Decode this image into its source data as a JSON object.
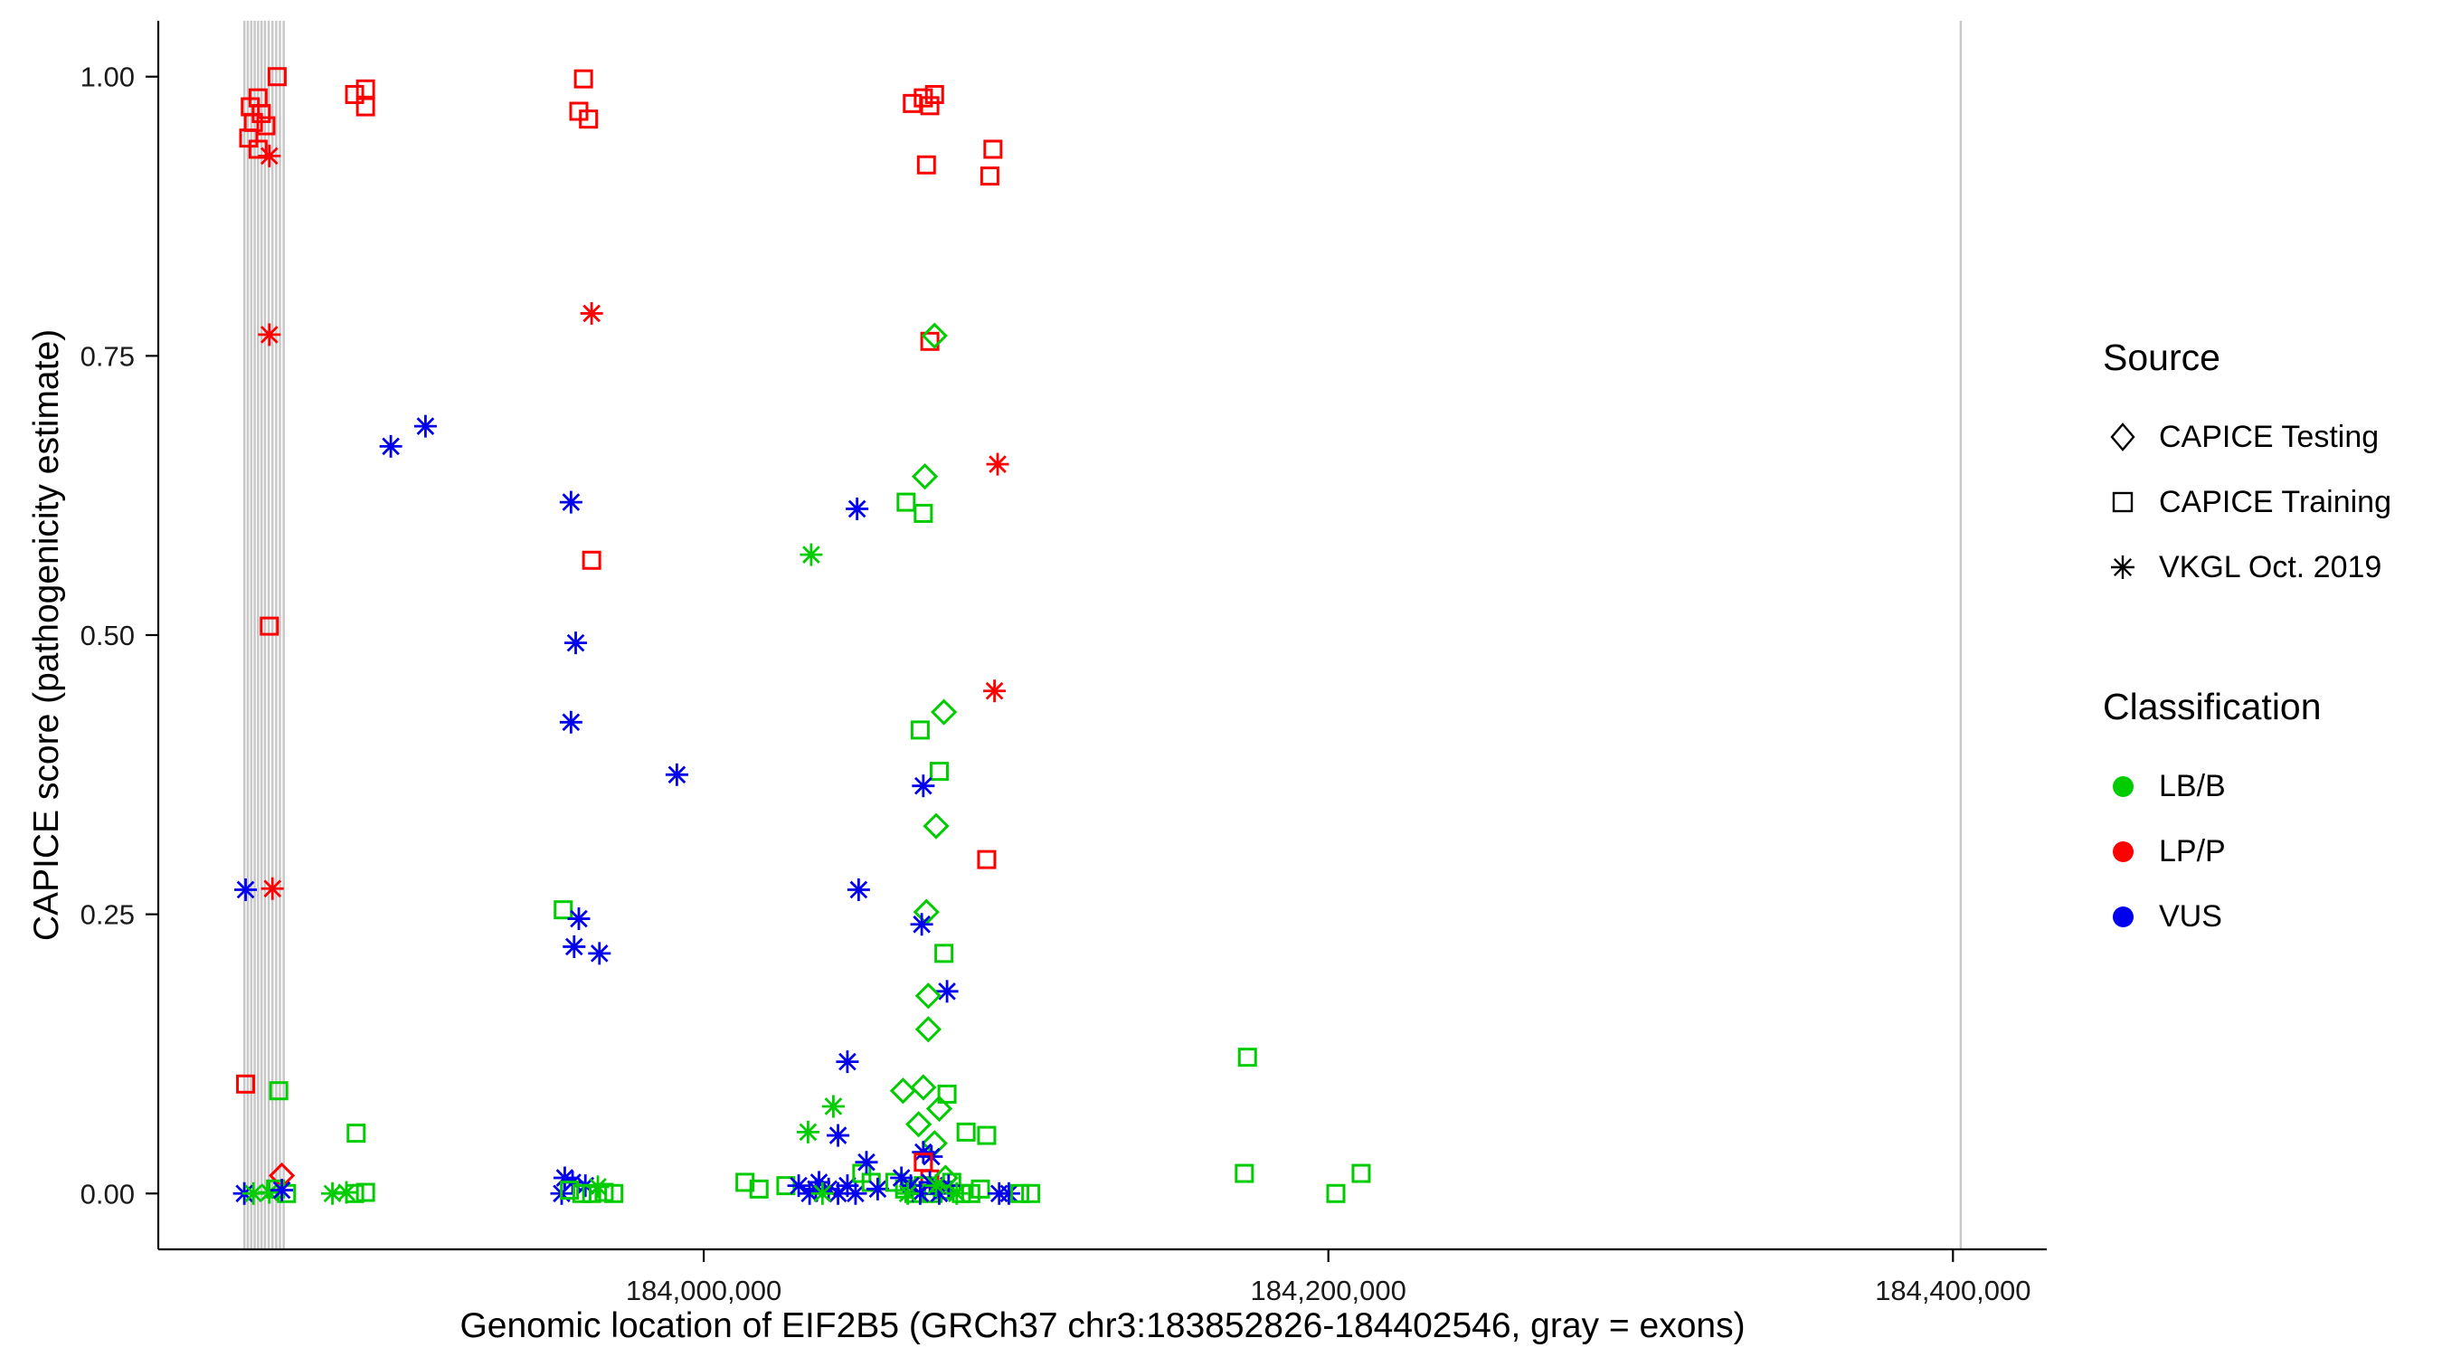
{
  "figure": {
    "xlabel": "Genomic location of EIF2B5 (GRCh37 chr3:183852826-184402546, gray = exons)",
    "ylabel": "CAPICE score (pathogenicity estimate)"
  },
  "legend": {
    "source": {
      "title": "Source",
      "items": [
        {
          "label": "CAPICE Testing",
          "shape": "diamond"
        },
        {
          "label": "CAPICE Training",
          "shape": "square"
        },
        {
          "label": "VKGL Oct. 2019",
          "shape": "asterisk"
        }
      ]
    },
    "classification": {
      "title": "Classification",
      "items": [
        {
          "label": "LB/B",
          "color": "#00cc00"
        },
        {
          "label": "LP/P",
          "color": "#ff0000"
        },
        {
          "label": "VUS",
          "color": "#0000ee"
        }
      ]
    }
  },
  "chart_data": {
    "type": "scatter",
    "title": "",
    "xlabel": "Genomic location of EIF2B5 (GRCh37 chr3:183852826-184402546, gray = exons)",
    "ylabel": "CAPICE score (pathogenicity estimate)",
    "xlim": [
      183825340,
      184430032
    ],
    "ylim": [
      -0.05,
      1.05
    ],
    "grid": false,
    "legend_position": "right",
    "x_ticks": [
      {
        "v": 184000000,
        "label": "184,000,000"
      },
      {
        "v": 184200000,
        "label": "184,200,000"
      },
      {
        "v": 184400000,
        "label": "184,400,000"
      }
    ],
    "y_ticks": [
      {
        "v": 0.0,
        "label": "0.00"
      },
      {
        "v": 0.25,
        "label": "0.25"
      },
      {
        "v": 0.5,
        "label": "0.50"
      },
      {
        "v": 0.75,
        "label": "0.75"
      },
      {
        "v": 1.0,
        "label": "1.00"
      }
    ],
    "exon_color": "#c8c8c8",
    "exons_x": [
      183852900,
      183854000,
      183855100,
      183856200,
      183857300,
      183858400,
      183859500,
      183860700,
      183861900,
      183863100,
      183864300,
      183865500,
      184402500
    ],
    "source_codes": {
      "d": "CAPICE Testing",
      "s": "CAPICE Training",
      "a": "VKGL Oct. 2019"
    },
    "class_codes": {
      "g": "LB/B",
      "r": "LP/P",
      "b": "VUS"
    },
    "class_colors": {
      "g": "#00cc00",
      "r": "#ff0000",
      "b": "#0000ee"
    },
    "point_format": [
      "genomic_position",
      "capice_score",
      "source_code",
      "classification_code"
    ],
    "points": [
      [
        183863400,
        1.0,
        "s",
        "r"
      ],
      [
        183857300,
        0.981,
        "s",
        "r"
      ],
      [
        183854800,
        0.973,
        "s",
        "r"
      ],
      [
        183858300,
        0.967,
        "s",
        "r"
      ],
      [
        183855800,
        0.959,
        "s",
        "r"
      ],
      [
        183859800,
        0.956,
        "s",
        "r"
      ],
      [
        183854300,
        0.945,
        "s",
        "r"
      ],
      [
        183857300,
        0.935,
        "s",
        "r"
      ],
      [
        183860900,
        0.929,
        "a",
        "r"
      ],
      [
        183860900,
        0.769,
        "a",
        "r"
      ],
      [
        183860900,
        0.508,
        "s",
        "r"
      ],
      [
        183853300,
        0.272,
        "a",
        "b"
      ],
      [
        183861900,
        0.273,
        "a",
        "r"
      ],
      [
        183853300,
        0.098,
        "s",
        "r"
      ],
      [
        183863900,
        0.092,
        "s",
        "g"
      ],
      [
        183864900,
        0.016,
        "d",
        "r"
      ],
      [
        183852900,
        0.0,
        "a",
        "b"
      ],
      [
        183855800,
        0.0,
        "a",
        "g"
      ],
      [
        183860900,
        0.001,
        "a",
        "g"
      ],
      [
        183862900,
        0.004,
        "s",
        "g"
      ],
      [
        183866400,
        0.0,
        "s",
        "g"
      ],
      [
        183864900,
        0.003,
        "a",
        "b"
      ],
      [
        183881100,
        0.0,
        "a",
        "g"
      ],
      [
        183885600,
        0.001,
        "a",
        "g"
      ],
      [
        183888200,
        0.0,
        "s",
        "g"
      ],
      [
        183891700,
        0.001,
        "s",
        "g"
      ],
      [
        183888700,
        0.054,
        "s",
        "g"
      ],
      [
        183888200,
        0.984,
        "s",
        "r"
      ],
      [
        183891700,
        0.989,
        "s",
        "r"
      ],
      [
        183891700,
        0.973,
        "s",
        "r"
      ],
      [
        183899800,
        0.669,
        "a",
        "b"
      ],
      [
        183910900,
        0.687,
        "a",
        "b"
      ],
      [
        183961500,
        0.998,
        "s",
        "r"
      ],
      [
        183960000,
        0.969,
        "s",
        "r"
      ],
      [
        183963100,
        0.962,
        "s",
        "r"
      ],
      [
        183964100,
        0.788,
        "a",
        "r"
      ],
      [
        183964100,
        0.567,
        "s",
        "r"
      ],
      [
        183957500,
        0.619,
        "a",
        "b"
      ],
      [
        183959000,
        0.493,
        "a",
        "b"
      ],
      [
        183957500,
        0.422,
        "a",
        "b"
      ],
      [
        183955000,
        0.254,
        "s",
        "g"
      ],
      [
        183960000,
        0.246,
        "a",
        "b"
      ],
      [
        183958500,
        0.221,
        "a",
        "b"
      ],
      [
        183966600,
        0.215,
        "a",
        "b"
      ],
      [
        183955500,
        0.014,
        "a",
        "b"
      ],
      [
        183958000,
        0.01,
        "a",
        "b"
      ],
      [
        183962100,
        0.007,
        "a",
        "b"
      ],
      [
        183954500,
        0.0,
        "a",
        "b"
      ],
      [
        183957000,
        0.003,
        "s",
        "g"
      ],
      [
        183961000,
        0.0,
        "s",
        "g"
      ],
      [
        183964100,
        0.0,
        "s",
        "g"
      ],
      [
        183968100,
        0.001,
        "s",
        "g"
      ],
      [
        183971200,
        0.0,
        "s",
        "g"
      ],
      [
        183966100,
        0.006,
        "a",
        "g"
      ],
      [
        183991400,
        0.375,
        "a",
        "b"
      ],
      [
        184013200,
        0.01,
        "s",
        "g"
      ],
      [
        184017700,
        0.004,
        "s",
        "g"
      ],
      [
        184026300,
        0.007,
        "s",
        "g"
      ],
      [
        184034400,
        0.572,
        "a",
        "g"
      ],
      [
        184049100,
        0.613,
        "a",
        "b"
      ],
      [
        184033400,
        0.055,
        "a",
        "g"
      ],
      [
        184041500,
        0.078,
        "a",
        "g"
      ],
      [
        184046000,
        0.118,
        "a",
        "b"
      ],
      [
        184043000,
        0.052,
        "a",
        "b"
      ],
      [
        184049600,
        0.272,
        "a",
        "b"
      ],
      [
        184036900,
        0.01,
        "a",
        "b"
      ],
      [
        184040000,
        0.004,
        "a",
        "b"
      ],
      [
        184043000,
        0.0,
        "a",
        "b"
      ],
      [
        184046000,
        0.007,
        "a",
        "b"
      ],
      [
        184048600,
        0.0,
        "a",
        "b"
      ],
      [
        184050600,
        0.018,
        "s",
        "g"
      ],
      [
        184053600,
        0.01,
        "s",
        "g"
      ],
      [
        184052100,
        0.028,
        "a",
        "b"
      ],
      [
        184055700,
        0.004,
        "a",
        "b"
      ],
      [
        184033900,
        0.0,
        "a",
        "b"
      ],
      [
        184035900,
        0.004,
        "a",
        "b"
      ],
      [
        184038000,
        0.0,
        "a",
        "g"
      ],
      [
        184030400,
        0.007,
        "a",
        "b"
      ],
      [
        184066800,
        0.976,
        "s",
        "r"
      ],
      [
        184070300,
        0.981,
        "s",
        "r"
      ],
      [
        184073900,
        0.984,
        "s",
        "r"
      ],
      [
        184072400,
        0.974,
        "s",
        "r"
      ],
      [
        184071300,
        0.921,
        "s",
        "r"
      ],
      [
        184092600,
        0.935,
        "s",
        "r"
      ],
      [
        184091600,
        0.911,
        "s",
        "r"
      ],
      [
        184072400,
        0.763,
        "s",
        "r"
      ],
      [
        184073900,
        0.768,
        "d",
        "g"
      ],
      [
        184070800,
        0.642,
        "d",
        "g"
      ],
      [
        184064800,
        0.619,
        "s",
        "g"
      ],
      [
        184070300,
        0.609,
        "s",
        "g"
      ],
      [
        184094100,
        0.653,
        "a",
        "r"
      ],
      [
        184093100,
        0.45,
        "a",
        "r"
      ],
      [
        184069300,
        0.415,
        "s",
        "g"
      ],
      [
        184076900,
        0.431,
        "d",
        "g"
      ],
      [
        184075400,
        0.378,
        "s",
        "g"
      ],
      [
        184070300,
        0.365,
        "a",
        "b"
      ],
      [
        184074400,
        0.329,
        "d",
        "g"
      ],
      [
        184090600,
        0.299,
        "s",
        "r"
      ],
      [
        184071300,
        0.252,
        "d",
        "g"
      ],
      [
        184069800,
        0.241,
        "a",
        "b"
      ],
      [
        184076900,
        0.215,
        "s",
        "g"
      ],
      [
        184077900,
        0.181,
        "a",
        "b"
      ],
      [
        184071900,
        0.177,
        "d",
        "g"
      ],
      [
        184071900,
        0.147,
        "d",
        "g"
      ],
      [
        184063800,
        0.092,
        "d",
        "g"
      ],
      [
        184070300,
        0.095,
        "d",
        "g"
      ],
      [
        184077900,
        0.089,
        "s",
        "g"
      ],
      [
        184075400,
        0.076,
        "d",
        "g"
      ],
      [
        184068800,
        0.062,
        "d",
        "g"
      ],
      [
        184084000,
        0.055,
        "s",
        "g"
      ],
      [
        184090600,
        0.052,
        "s",
        "g"
      ],
      [
        184073900,
        0.045,
        "d",
        "g"
      ],
      [
        184070300,
        0.037,
        "a",
        "b"
      ],
      [
        184072900,
        0.033,
        "a",
        "b"
      ],
      [
        184070300,
        0.028,
        "s",
        "r"
      ],
      [
        184072400,
        0.013,
        "s",
        "r"
      ],
      [
        184061200,
        0.01,
        "s",
        "g"
      ],
      [
        184064300,
        0.004,
        "s",
        "g"
      ],
      [
        184067300,
        0.0,
        "s",
        "g"
      ],
      [
        184070300,
        0.007,
        "s",
        "g"
      ],
      [
        184073400,
        0.0,
        "s",
        "g"
      ],
      [
        184076400,
        0.003,
        "s",
        "g"
      ],
      [
        184079400,
        0.01,
        "s",
        "g"
      ],
      [
        184082500,
        0.0,
        "s",
        "g"
      ],
      [
        184085500,
        0.0,
        "s",
        "g"
      ],
      [
        184088600,
        0.004,
        "s",
        "g"
      ],
      [
        184063300,
        0.014,
        "a",
        "b"
      ],
      [
        184066300,
        0.007,
        "a",
        "b"
      ],
      [
        184069300,
        0.0,
        "a",
        "b"
      ],
      [
        184072400,
        0.01,
        "a",
        "b"
      ],
      [
        184075400,
        0.0,
        "a",
        "b"
      ],
      [
        184078400,
        0.007,
        "a",
        "b"
      ],
      [
        184097700,
        0.0,
        "a",
        "b"
      ],
      [
        184065300,
        0.0,
        "a",
        "g"
      ],
      [
        184074400,
        0.007,
        "a",
        "g"
      ],
      [
        184081000,
        0.0,
        "a",
        "g"
      ],
      [
        184077400,
        0.014,
        "d",
        "g"
      ],
      [
        184101200,
        0.0,
        "s",
        "g"
      ],
      [
        184104700,
        0.0,
        "s",
        "g"
      ],
      [
        184094600,
        0.0,
        "a",
        "b"
      ],
      [
        184174100,
        0.122,
        "s",
        "g"
      ],
      [
        184173100,
        0.018,
        "s",
        "g"
      ],
      [
        184202400,
        0.0,
        "s",
        "g"
      ],
      [
        184210500,
        0.018,
        "s",
        "g"
      ]
    ]
  }
}
